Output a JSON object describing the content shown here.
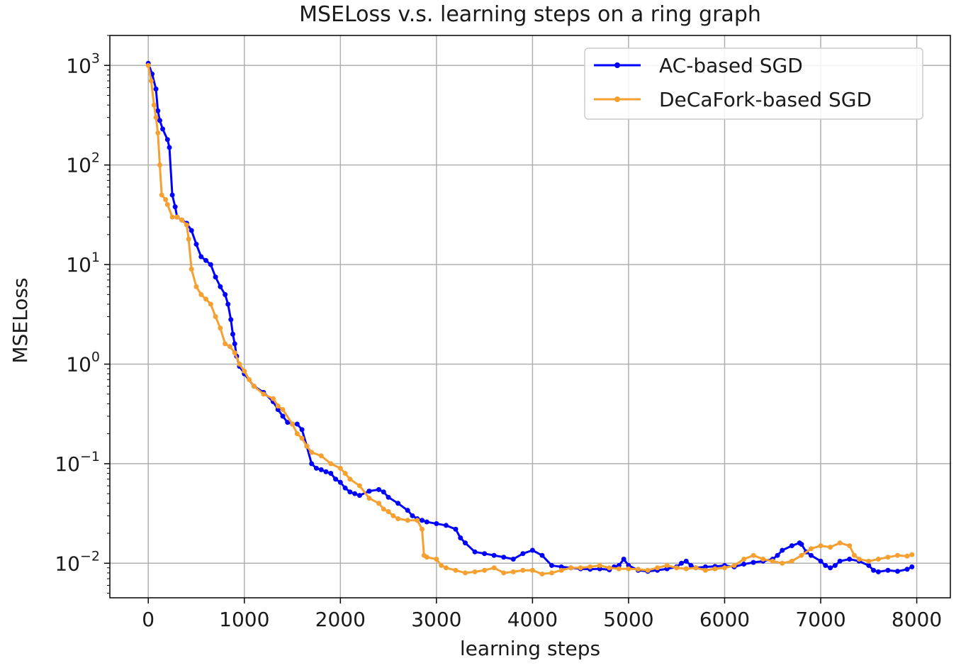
{
  "chart_data": {
    "type": "line",
    "title": "MSELoss v.s. learning steps on a ring graph",
    "xlabel": "learning steps",
    "ylabel": "MSELoss",
    "xlim": [
      -400,
      8350
    ],
    "ylim": [
      0.0045,
      2000
    ],
    "yscale": "log",
    "grid": true,
    "legend_position": "top-right",
    "x_ticks": [
      {
        "value": 0,
        "label": "0"
      },
      {
        "value": 1000,
        "label": "1000"
      },
      {
        "value": 2000,
        "label": "2000"
      },
      {
        "value": 3000,
        "label": "3000"
      },
      {
        "value": 4000,
        "label": "4000"
      },
      {
        "value": 5000,
        "label": "5000"
      },
      {
        "value": 6000,
        "label": "6000"
      },
      {
        "value": 7000,
        "label": "7000"
      },
      {
        "value": 8000,
        "label": "8000"
      }
    ],
    "y_ticks": [
      {
        "value": 1000,
        "base": "10",
        "exp": "3"
      },
      {
        "value": 100,
        "base": "10",
        "exp": "2"
      },
      {
        "value": 10,
        "base": "10",
        "exp": "1"
      },
      {
        "value": 1,
        "base": "10",
        "exp": "0"
      },
      {
        "value": 0.1,
        "base": "10",
        "exp": "−1"
      },
      {
        "value": 0.01,
        "base": "10",
        "exp": "−2"
      }
    ],
    "series": [
      {
        "name": "AC-based SGD",
        "color": "#0000ff",
        "points": [
          [
            0,
            1050
          ],
          [
            40,
            820
          ],
          [
            80,
            580
          ],
          [
            100,
            350
          ],
          [
            120,
            280
          ],
          [
            150,
            230
          ],
          [
            200,
            180
          ],
          [
            220,
            150
          ],
          [
            250,
            50
          ],
          [
            280,
            38
          ],
          [
            300,
            30
          ],
          [
            350,
            28
          ],
          [
            400,
            26
          ],
          [
            450,
            22
          ],
          [
            500,
            16
          ],
          [
            550,
            12
          ],
          [
            600,
            11
          ],
          [
            650,
            10
          ],
          [
            700,
            7.5
          ],
          [
            750,
            6
          ],
          [
            800,
            5
          ],
          [
            830,
            4
          ],
          [
            860,
            2.8
          ],
          [
            880,
            2
          ],
          [
            900,
            1.6
          ],
          [
            920,
            1.2
          ],
          [
            950,
            0.95
          ],
          [
            1000,
            0.8
          ],
          [
            1100,
            0.6
          ],
          [
            1200,
            0.52
          ],
          [
            1300,
            0.42
          ],
          [
            1350,
            0.35
          ],
          [
            1400,
            0.3
          ],
          [
            1450,
            0.26
          ],
          [
            1500,
            0.25
          ],
          [
            1550,
            0.25
          ],
          [
            1600,
            0.22
          ],
          [
            1650,
            0.15
          ],
          [
            1700,
            0.1
          ],
          [
            1750,
            0.09
          ],
          [
            1800,
            0.087
          ],
          [
            1850,
            0.083
          ],
          [
            1900,
            0.08
          ],
          [
            1950,
            0.07
          ],
          [
            2000,
            0.065
          ],
          [
            2050,
            0.057
          ],
          [
            2100,
            0.052
          ],
          [
            2150,
            0.05
          ],
          [
            2200,
            0.048
          ],
          [
            2300,
            0.053
          ],
          [
            2400,
            0.055
          ],
          [
            2450,
            0.052
          ],
          [
            2500,
            0.046
          ],
          [
            2600,
            0.04
          ],
          [
            2700,
            0.034
          ],
          [
            2750,
            0.03
          ],
          [
            2800,
            0.028
          ],
          [
            2850,
            0.027
          ],
          [
            2900,
            0.026
          ],
          [
            3000,
            0.025
          ],
          [
            3100,
            0.024
          ],
          [
            3200,
            0.022
          ],
          [
            3250,
            0.018
          ],
          [
            3300,
            0.016
          ],
          [
            3400,
            0.013
          ],
          [
            3500,
            0.0125
          ],
          [
            3600,
            0.012
          ],
          [
            3700,
            0.0115
          ],
          [
            3800,
            0.011
          ],
          [
            3900,
            0.0125
          ],
          [
            4000,
            0.0135
          ],
          [
            4100,
            0.012
          ],
          [
            4200,
            0.0095
          ],
          [
            4300,
            0.0092
          ],
          [
            4400,
            0.009
          ],
          [
            4500,
            0.0088
          ],
          [
            4600,
            0.0087
          ],
          [
            4700,
            0.0088
          ],
          [
            4800,
            0.0086
          ],
          [
            4850,
            0.0092
          ],
          [
            4900,
            0.0095
          ],
          [
            4950,
            0.011
          ],
          [
            5000,
            0.0095
          ],
          [
            5100,
            0.0085
          ],
          [
            5200,
            0.0083
          ],
          [
            5300,
            0.0085
          ],
          [
            5400,
            0.0088
          ],
          [
            5500,
            0.0092
          ],
          [
            5550,
            0.01
          ],
          [
            5600,
            0.0105
          ],
          [
            5650,
            0.0095
          ],
          [
            5700,
            0.009
          ],
          [
            5800,
            0.0092
          ],
          [
            5900,
            0.0093
          ],
          [
            6000,
            0.0095
          ],
          [
            6100,
            0.0092
          ],
          [
            6200,
            0.0098
          ],
          [
            6300,
            0.0102
          ],
          [
            6400,
            0.0105
          ],
          [
            6500,
            0.011
          ],
          [
            6550,
            0.012
          ],
          [
            6600,
            0.0135
          ],
          [
            6700,
            0.015
          ],
          [
            6780,
            0.016
          ],
          [
            6800,
            0.0155
          ],
          [
            6850,
            0.013
          ],
          [
            6900,
            0.012
          ],
          [
            7000,
            0.0105
          ],
          [
            7050,
            0.0095
          ],
          [
            7100,
            0.009
          ],
          [
            7150,
            0.0095
          ],
          [
            7200,
            0.0105
          ],
          [
            7300,
            0.011
          ],
          [
            7400,
            0.0105
          ],
          [
            7500,
            0.0095
          ],
          [
            7550,
            0.0085
          ],
          [
            7600,
            0.0082
          ],
          [
            7700,
            0.0085
          ],
          [
            7800,
            0.0083
          ],
          [
            7900,
            0.0087
          ],
          [
            7950,
            0.0092
          ]
        ]
      },
      {
        "name": "DeCaFork-based SGD",
        "color": "#f5a030",
        "points": [
          [
            0,
            1000
          ],
          [
            30,
            700
          ],
          [
            60,
            400
          ],
          [
            80,
            300
          ],
          [
            100,
            210
          ],
          [
            120,
            100
          ],
          [
            140,
            50
          ],
          [
            180,
            45
          ],
          [
            200,
            40
          ],
          [
            250,
            30
          ],
          [
            300,
            30
          ],
          [
            350,
            28
          ],
          [
            400,
            25
          ],
          [
            420,
            18
          ],
          [
            450,
            9
          ],
          [
            500,
            6
          ],
          [
            550,
            5
          ],
          [
            600,
            4.5
          ],
          [
            650,
            4
          ],
          [
            700,
            3
          ],
          [
            750,
            2.3
          ],
          [
            800,
            1.6
          ],
          [
            850,
            1.5
          ],
          [
            900,
            1.3
          ],
          [
            950,
            1.0
          ],
          [
            1000,
            0.85
          ],
          [
            1050,
            0.7
          ],
          [
            1100,
            0.6
          ],
          [
            1200,
            0.5
          ],
          [
            1300,
            0.45
          ],
          [
            1350,
            0.38
          ],
          [
            1400,
            0.35
          ],
          [
            1500,
            0.25
          ],
          [
            1550,
            0.2
          ],
          [
            1600,
            0.18
          ],
          [
            1650,
            0.15
          ],
          [
            1700,
            0.13
          ],
          [
            1800,
            0.12
          ],
          [
            1900,
            0.1
          ],
          [
            2000,
            0.09
          ],
          [
            2050,
            0.08
          ],
          [
            2100,
            0.07
          ],
          [
            2200,
            0.06
          ],
          [
            2300,
            0.045
          ],
          [
            2400,
            0.04
          ],
          [
            2450,
            0.035
          ],
          [
            2500,
            0.033
          ],
          [
            2550,
            0.03
          ],
          [
            2600,
            0.028
          ],
          [
            2700,
            0.027
          ],
          [
            2800,
            0.027
          ],
          [
            2850,
            0.022
          ],
          [
            2870,
            0.012
          ],
          [
            2900,
            0.0115
          ],
          [
            3000,
            0.011
          ],
          [
            3050,
            0.0095
          ],
          [
            3100,
            0.009
          ],
          [
            3200,
            0.0085
          ],
          [
            3300,
            0.008
          ],
          [
            3400,
            0.0082
          ],
          [
            3500,
            0.0085
          ],
          [
            3600,
            0.009
          ],
          [
            3700,
            0.008
          ],
          [
            3800,
            0.0082
          ],
          [
            3900,
            0.0085
          ],
          [
            4000,
            0.0085
          ],
          [
            4100,
            0.0078
          ],
          [
            4200,
            0.008
          ],
          [
            4300,
            0.0085
          ],
          [
            4400,
            0.009
          ],
          [
            4500,
            0.009
          ],
          [
            4600,
            0.0092
          ],
          [
            4700,
            0.0095
          ],
          [
            4800,
            0.009
          ],
          [
            4900,
            0.0088
          ],
          [
            5000,
            0.0088
          ],
          [
            5100,
            0.0087
          ],
          [
            5200,
            0.0085
          ],
          [
            5300,
            0.009
          ],
          [
            5400,
            0.0095
          ],
          [
            5500,
            0.009
          ],
          [
            5600,
            0.0088
          ],
          [
            5700,
            0.009
          ],
          [
            5800,
            0.0085
          ],
          [
            5900,
            0.0088
          ],
          [
            6000,
            0.009
          ],
          [
            6100,
            0.0095
          ],
          [
            6200,
            0.011
          ],
          [
            6300,
            0.012
          ],
          [
            6400,
            0.011
          ],
          [
            6500,
            0.0105
          ],
          [
            6600,
            0.01
          ],
          [
            6700,
            0.0105
          ],
          [
            6800,
            0.012
          ],
          [
            6900,
            0.014
          ],
          [
            7000,
            0.015
          ],
          [
            7100,
            0.0145
          ],
          [
            7200,
            0.016
          ],
          [
            7300,
            0.015
          ],
          [
            7350,
            0.012
          ],
          [
            7400,
            0.011
          ],
          [
            7500,
            0.0105
          ],
          [
            7600,
            0.011
          ],
          [
            7700,
            0.0115
          ],
          [
            7800,
            0.012
          ],
          [
            7900,
            0.0118
          ],
          [
            7950,
            0.0122
          ]
        ]
      }
    ]
  }
}
